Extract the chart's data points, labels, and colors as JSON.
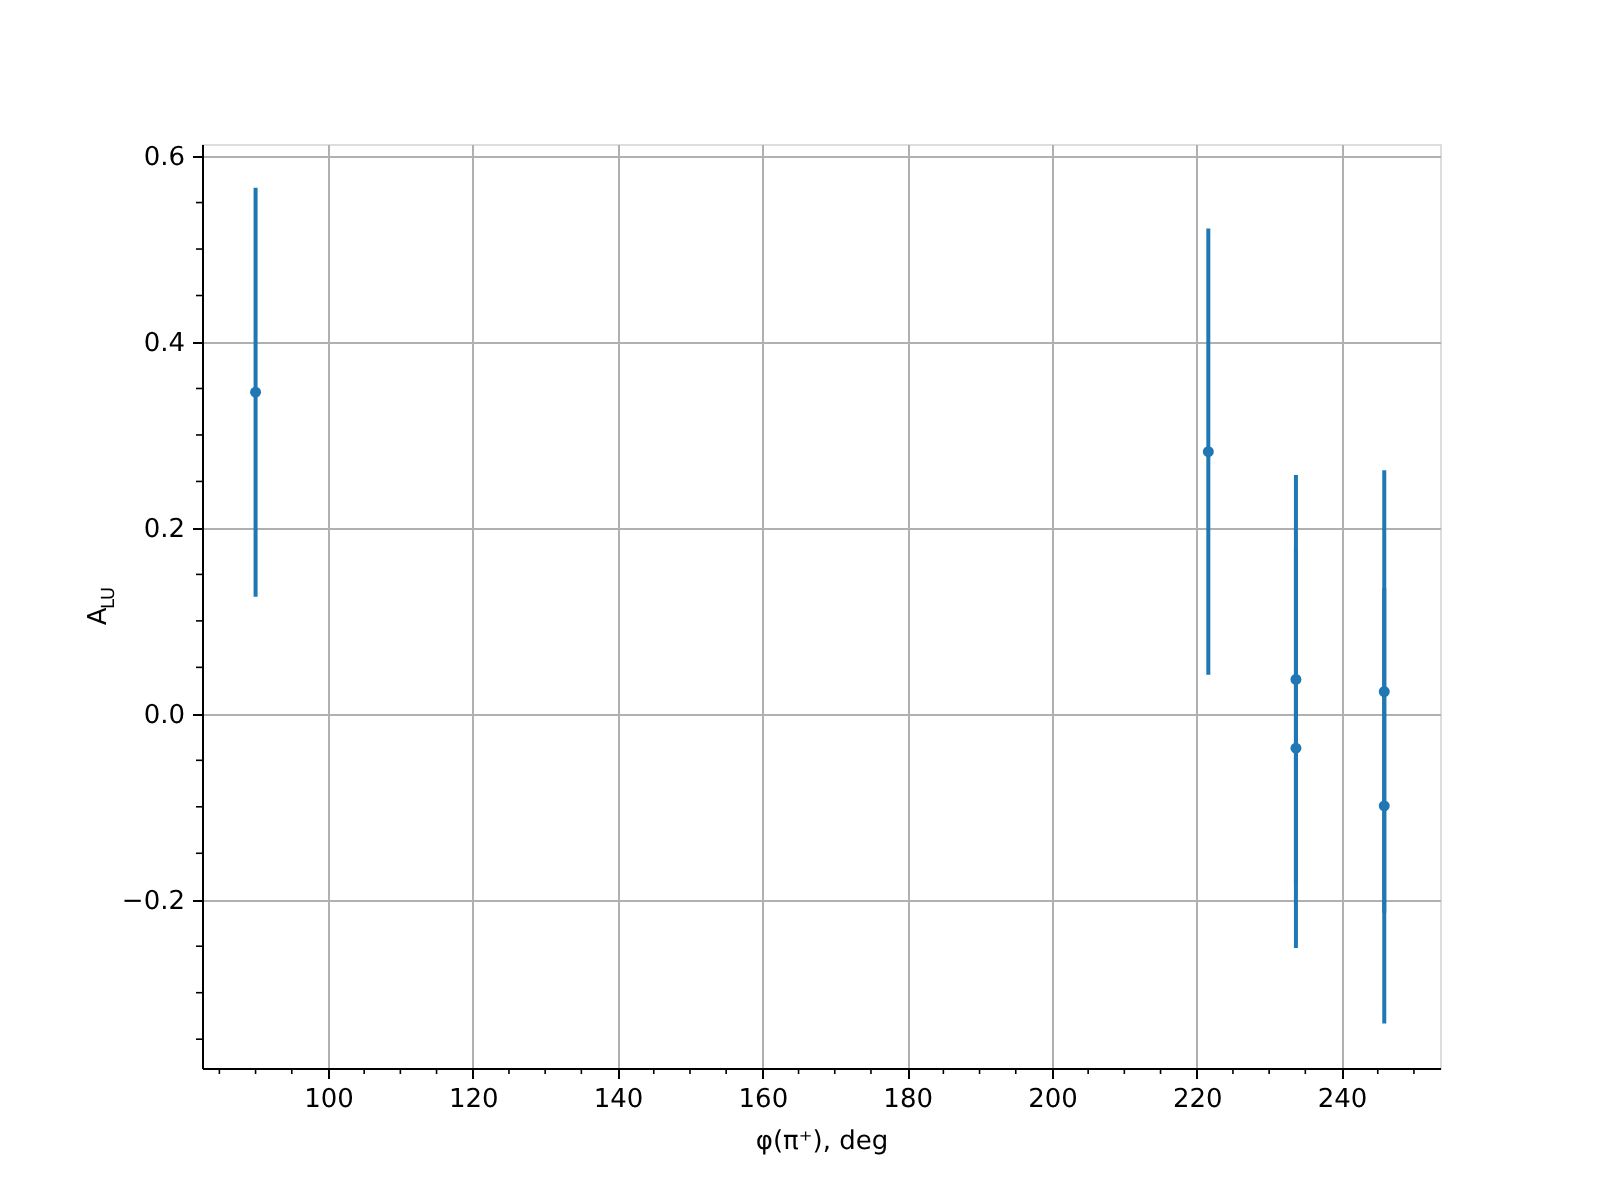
{
  "chart_data": {
    "type": "scatter",
    "xlabel": "φ(π⁺), deg",
    "ylabel": "A$_{LU}$",
    "x": [
      90,
      221.6,
      233.7,
      233.7,
      245.9,
      245.9
    ],
    "series": [
      {
        "color": "#1f77b4",
        "values": [
          0.346,
          0.282,
          0.037,
          -0.037,
          0.024,
          -0.099
        ],
        "errors": [
          0.22,
          0.24,
          0.22,
          0.215,
          0.238,
          0.234
        ]
      }
    ],
    "xlim": [
      82.6,
      253.6
    ],
    "ylim": [
      -0.381,
      0.613
    ],
    "xticks": [
      {
        "value": 85,
        "label": null
      },
      {
        "value": 90,
        "label": null
      },
      {
        "value": 95,
        "label": null
      },
      100,
      {
        "value": 105,
        "label": null
      },
      {
        "value": 110,
        "label": null
      },
      {
        "value": 115,
        "label": null
      },
      120,
      {
        "value": 125,
        "label": null
      },
      {
        "value": 130,
        "label": null
      },
      {
        "value": 135,
        "label": null
      },
      140,
      {
        "value": 145,
        "label": null
      },
      {
        "value": 150,
        "label": null
      },
      {
        "value": 155,
        "label": null
      },
      160,
      {
        "value": 165,
        "label": null
      },
      {
        "value": 170,
        "label": null
      },
      {
        "value": 175,
        "label": null
      },
      180,
      {
        "value": 185,
        "label": null
      },
      {
        "value": 190,
        "label": null
      },
      {
        "value": 195,
        "label": null
      },
      200,
      {
        "value": 205,
        "label": null
      },
      {
        "value": 210,
        "label": null
      },
      {
        "value": 215,
        "label": null
      },
      220,
      {
        "value": 225,
        "label": null
      },
      {
        "value": 230,
        "label": null
      },
      {
        "value": 235,
        "label": null
      },
      240,
      {
        "value": 245,
        "label": null
      },
      {
        "value": 250,
        "label": null
      }
    ],
    "yticks": [
      {
        "value": -0.35,
        "label": null
      },
      {
        "value": -0.3,
        "label": null
      },
      {
        "value": -0.25,
        "label": null
      },
      {
        "value": -0.2,
        "label": "−0.2"
      },
      {
        "value": -0.15,
        "label": null
      },
      {
        "value": -0.1,
        "label": null
      },
      {
        "value": -0.05,
        "label": null
      },
      {
        "value": 0,
        "label": "0.0"
      },
      {
        "value": 0.05,
        "label": null
      },
      {
        "value": 0.1,
        "label": null
      },
      {
        "value": 0.15,
        "label": null
      },
      0.2,
      {
        "value": 0.25,
        "label": null
      },
      {
        "value": 0.3,
        "label": null
      },
      {
        "value": 0.35,
        "label": null
      },
      0.4,
      {
        "value": 0.45,
        "label": null
      },
      {
        "value": 0.5,
        "label": null
      },
      {
        "value": 0.55,
        "label": null
      },
      0.6
    ],
    "grid": true,
    "marker": "circle"
  }
}
